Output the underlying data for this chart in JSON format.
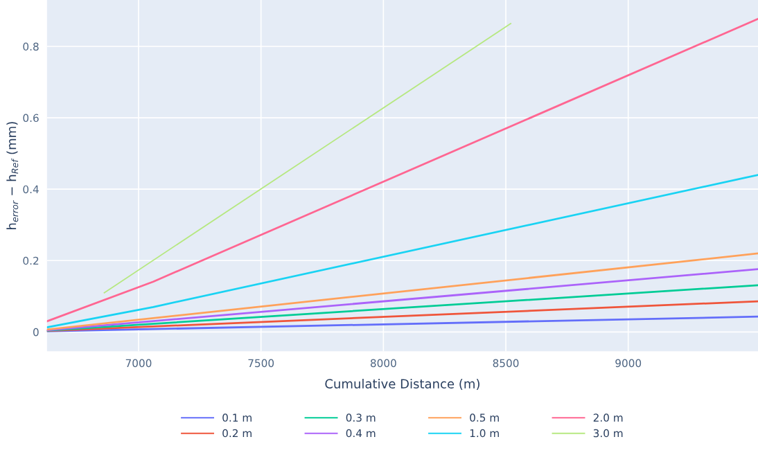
{
  "chart_data": {
    "type": "line",
    "xlabel": "Cumulative Distance (m)",
    "ylabel": "h$_{error}$ − h$_{Ref}$ (mm)",
    "xlim": [
      6626,
      9530
    ],
    "ylim": [
      -0.054,
      0.93
    ],
    "xticks": [
      7000,
      7500,
      8000,
      8500,
      9000
    ],
    "yticks": [
      0,
      0.2,
      0.4,
      0.6,
      0.8
    ],
    "grid": true,
    "legend": "bottom",
    "marker": "none",
    "line_style": "solid",
    "series": [
      {
        "name": "0.1 m",
        "color": "#636efa",
        "x": [
          6626,
          9530
        ],
        "values": [
          0.002,
          0.043
        ]
      },
      {
        "name": "0.2 m",
        "color": "#ef553b",
        "x": [
          6626,
          9530
        ],
        "values": [
          0.003,
          0.086
        ]
      },
      {
        "name": "0.3 m",
        "color": "#00cc96",
        "x": [
          6626,
          9530
        ],
        "values": [
          0.004,
          0.131
        ]
      },
      {
        "name": "0.4 m",
        "color": "#ab63fa",
        "x": [
          6626,
          9530
        ],
        "values": [
          0.005,
          0.176
        ]
      },
      {
        "name": "0.5 m",
        "color": "#ffa15a",
        "x": [
          6626,
          9530
        ],
        "values": [
          0.007,
          0.22
        ]
      },
      {
        "name": "1.0 m",
        "color": "#19d3f3",
        "x": [
          6626,
          7060,
          9530
        ],
        "values": [
          0.013,
          0.07,
          0.44
        ]
      },
      {
        "name": "2.0 m",
        "color": "#ff6692",
        "x": [
          6626,
          7060,
          9530
        ],
        "values": [
          0.03,
          0.141,
          0.877
        ]
      },
      {
        "name": "3.0 m",
        "color": "#b6e880",
        "x": [
          6860,
          8520
        ],
        "values": [
          0.11,
          0.864
        ]
      }
    ]
  }
}
